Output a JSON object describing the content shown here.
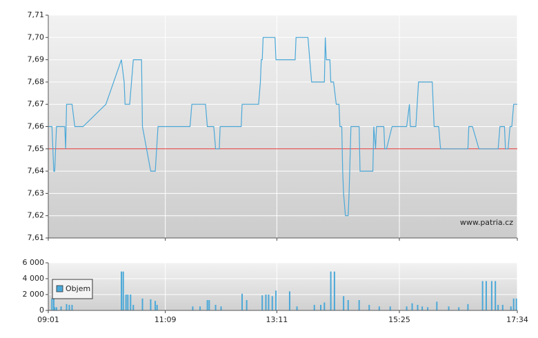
{
  "chart_data": [
    {
      "type": "line",
      "x": [
        "09:01",
        "09:05",
        "09:07",
        "09:08",
        "09:10",
        "09:19",
        "09:20",
        "09:21",
        "09:27",
        "09:30",
        "09:39",
        "10:04",
        "10:21",
        "10:24",
        "10:25",
        "10:30",
        "10:34",
        "10:43",
        "10:44",
        "10:53",
        "10:58",
        "11:01",
        "11:36",
        "11:38",
        "11:53",
        "11:55",
        "12:02",
        "12:04",
        "12:08",
        "12:09",
        "12:32",
        "12:33",
        "12:51",
        "12:53",
        "12:54",
        "12:55",
        "12:56",
        "13:09",
        "13:10",
        "13:31",
        "13:32",
        "13:45",
        "13:47",
        "13:49",
        "14:03",
        "14:04",
        "14:05",
        "14:09",
        "14:10",
        "14:13",
        "14:16",
        "14:19",
        "14:20",
        "14:22",
        "14:23",
        "14:24",
        "14:26",
        "14:29",
        "14:30",
        "14:32",
        "14:41",
        "14:42",
        "14:56",
        "14:57",
        "14:59",
        "15:00",
        "15:08",
        "15:09",
        "15:11",
        "15:17",
        "15:33",
        "15:36",
        "15:37",
        "15:43",
        "15:46",
        "16:01",
        "16:03",
        "16:08",
        "16:10",
        "16:40",
        "16:41",
        "16:45",
        "16:52",
        "17:13",
        "17:15",
        "17:20",
        "17:21",
        "17:24",
        "17:26",
        "17:28",
        "17:30",
        "17:34"
      ],
      "values": [
        7.66,
        7.66,
        7.64,
        7.64,
        7.66,
        7.66,
        7.65,
        7.67,
        7.67,
        7.66,
        7.66,
        7.67,
        7.69,
        7.68,
        7.67,
        7.67,
        7.69,
        7.69,
        7.66,
        7.64,
        7.64,
        7.66,
        7.66,
        7.67,
        7.67,
        7.66,
        7.66,
        7.65,
        7.65,
        7.66,
        7.66,
        7.67,
        7.67,
        7.68,
        7.69,
        7.69,
        7.7,
        7.7,
        7.69,
        7.69,
        7.7,
        7.7,
        7.69,
        7.68,
        7.68,
        7.7,
        7.69,
        7.69,
        7.68,
        7.68,
        7.67,
        7.67,
        7.66,
        7.66,
        7.64,
        7.63,
        7.62,
        7.62,
        7.63,
        7.66,
        7.66,
        7.64,
        7.64,
        7.66,
        7.65,
        7.66,
        7.66,
        7.65,
        7.65,
        7.66,
        7.66,
        7.67,
        7.66,
        7.66,
        7.68,
        7.68,
        7.66,
        7.66,
        7.65,
        7.65,
        7.66,
        7.66,
        7.65,
        7.65,
        7.66,
        7.66,
        7.65,
        7.65,
        7.66,
        7.66,
        7.67,
        7.67
      ],
      "color": "#4aa8d8",
      "xlim": [
        "09:01",
        "17:34"
      ],
      "ylim": [
        7.61,
        7.71
      ],
      "yticks": [
        {
          "value": 7.61,
          "label": "7,61"
        },
        {
          "value": 7.62,
          "label": "7,62"
        },
        {
          "value": 7.63,
          "label": "7,63"
        },
        {
          "value": 7.64,
          "label": "7,64"
        },
        {
          "value": 7.65,
          "label": "7,65"
        },
        {
          "value": 7.66,
          "label": "7,66"
        },
        {
          "value": 7.67,
          "label": "7,67"
        },
        {
          "value": 7.68,
          "label": "7,68"
        },
        {
          "value": 7.69,
          "label": "7,69"
        },
        {
          "value": 7.7,
          "label": "7,70"
        },
        {
          "value": 7.71,
          "label": "7,71"
        }
      ],
      "reference_line": {
        "value": 7.65,
        "color": "#e03030"
      },
      "watermark": "www.patria.cz",
      "grid": true
    },
    {
      "type": "bar",
      "x": [
        "09:05",
        "09:07",
        "09:08",
        "09:10",
        "09:15",
        "09:21",
        "09:24",
        "09:27",
        "10:21",
        "10:23",
        "10:26",
        "10:28",
        "10:31",
        "10:34",
        "10:44",
        "10:53",
        "10:58",
        "11:00",
        "11:39",
        "11:47",
        "11:55",
        "11:57",
        "12:04",
        "12:10",
        "12:33",
        "12:38",
        "12:55",
        "12:59",
        "13:02",
        "13:06",
        "13:10",
        "13:25",
        "13:33",
        "13:52",
        "13:59",
        "14:03",
        "14:10",
        "14:14",
        "14:24",
        "14:29",
        "14:41",
        "14:52",
        "15:03",
        "15:15",
        "15:33",
        "15:39",
        "15:45",
        "15:50",
        "15:56",
        "16:06",
        "16:19",
        "16:30",
        "16:40",
        "16:56",
        "17:00",
        "17:06",
        "17:10",
        "17:13",
        "17:18",
        "17:27",
        "17:30",
        "17:33"
      ],
      "series": [
        {
          "name": "Objem",
          "color": "#4aa8d8",
          "values": [
            1500,
            1500,
            400,
            400,
            500,
            800,
            700,
            700,
            4900,
            4900,
            2000,
            2000,
            2000,
            700,
            1500,
            1400,
            1200,
            700,
            500,
            500,
            1300,
            1300,
            700,
            500,
            2100,
            1300,
            1900,
            2000,
            2000,
            1800,
            2500,
            2400,
            500,
            700,
            700,
            1000,
            4900,
            4900,
            1800,
            1300,
            1300,
            700,
            500,
            500,
            500,
            900,
            700,
            500,
            400,
            1100,
            500,
            400,
            800,
            3700,
            3700,
            3700,
            3700,
            700,
            700,
            500,
            1500,
            1500
          ]
        }
      ],
      "xlim": [
        "09:01",
        "17:34"
      ],
      "xticks": [
        "09:01",
        "11:09",
        "13:11",
        "15:25",
        "17:34"
      ],
      "ylim": [
        0,
        6000
      ],
      "yticks": [
        0,
        {
          "value": 2000,
          "label": "2 000"
        },
        {
          "value": 4000,
          "label": "4 000"
        },
        {
          "value": 6000,
          "label": "6 000"
        }
      ],
      "legend": "upper left",
      "grid": true
    }
  ]
}
